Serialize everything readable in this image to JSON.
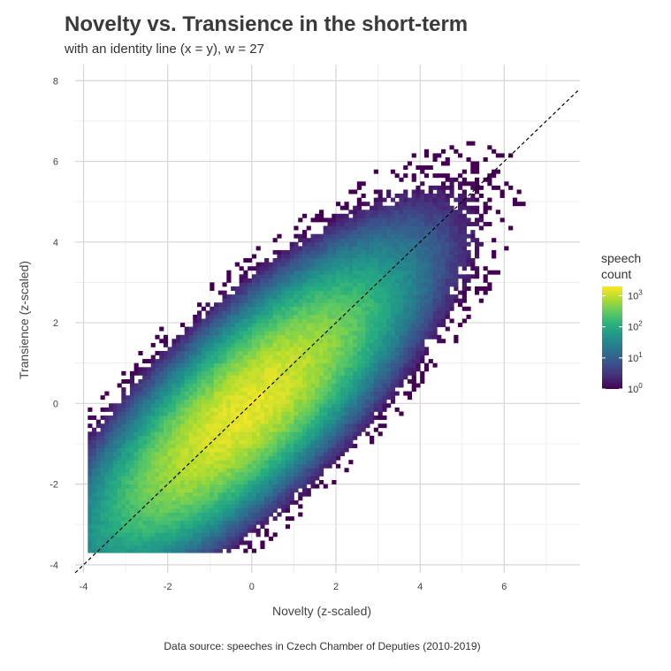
{
  "chart_data": {
    "type": "heatmap",
    "title": "Novelty vs. Transience in the short-term",
    "subtitle": "with an identity line (x = y), w = 27",
    "xlabel": "Novelty (z-scaled)",
    "ylabel": "Transience (z-scaled)",
    "caption": "Data source: speeches in Czech Chamber of Deputies (2010-2019)",
    "xlim": [
      -4.2,
      7.8
    ],
    "ylim": [
      -4.2,
      8.4
    ],
    "x_ticks": [
      "-4",
      "-2",
      "0",
      "2",
      "4",
      "6"
    ],
    "y_ticks": [
      "-4",
      "-2",
      "0",
      "2",
      "4",
      "6",
      "8"
    ],
    "grid": true,
    "identity_line": {
      "slope": 1,
      "intercept": 0,
      "style": "dashed"
    },
    "density_model": {
      "center": [
        -0.2,
        -0.2
      ],
      "spread_along_identity": 1.85,
      "spread_across_identity": 0.62,
      "peak_count": 1500
    },
    "legend": {
      "title_line1": "speech",
      "title_line2": "count",
      "scale": "log10",
      "range": [
        1,
        2000
      ],
      "tick_labels": [
        {
          "base": "10",
          "exp": "3",
          "value": 1000
        },
        {
          "base": "10",
          "exp": "2",
          "value": 100
        },
        {
          "base": "10",
          "exp": "1",
          "value": 10
        },
        {
          "base": "10",
          "exp": "0",
          "value": 1
        }
      ],
      "palette": "viridis",
      "colors": [
        "#440154",
        "#472d7b",
        "#3b528b",
        "#2c728e",
        "#21918c",
        "#28ae80",
        "#5ec962",
        "#addc30",
        "#fde725"
      ],
      "placement": "right"
    }
  }
}
